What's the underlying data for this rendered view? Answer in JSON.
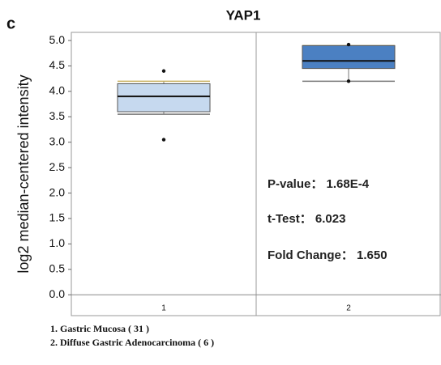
{
  "chart_data": {
    "type": "box",
    "panel_label": "c",
    "title": "YAP1",
    "ylabel": "log2 median-centered intensity",
    "categories": [
      "1",
      "2"
    ],
    "boxes": [
      {
        "whislo": 3.55,
        "q1": 3.6,
        "med": 3.9,
        "q3": 4.15,
        "whishi": 4.2,
        "fliers": [
          4.4,
          3.05
        ],
        "color": "#c6d9ef"
      },
      {
        "whislo": 4.2,
        "q1": 4.45,
        "med": 4.6,
        "q3": 4.9,
        "whishi": 4.9,
        "fliers": [
          4.92,
          4.2
        ],
        "color": "#4b80c2"
      }
    ],
    "ylim": [
      -0.41,
      5.16
    ],
    "yticks": [
      {
        "value": 0,
        "label": "0.0"
      },
      {
        "value": 0.5,
        "label": "0.5"
      },
      {
        "value": 1,
        "label": "1.0"
      },
      {
        "value": 1.5,
        "label": "1.5"
      },
      {
        "value": 2,
        "label": "2.0"
      },
      {
        "value": 2.5,
        "label": "2.5"
      },
      {
        "value": 3,
        "label": "3.0"
      },
      {
        "value": 3.5,
        "label": "3.5"
      },
      {
        "value": 4,
        "label": "4.0"
      },
      {
        "value": 4.5,
        "label": "4.5"
      },
      {
        "value": 5,
        "label": "5.0"
      }
    ],
    "annotations": [
      "P-value： 1.68E-4",
      "t-Test： 6.023",
      "Fold Change： 1.650"
    ],
    "legend": [
      "1. Gastric Mucosa ( 31 )",
      "2. Diffuse Gastric Adenocarcinoma ( 6 )"
    ]
  }
}
